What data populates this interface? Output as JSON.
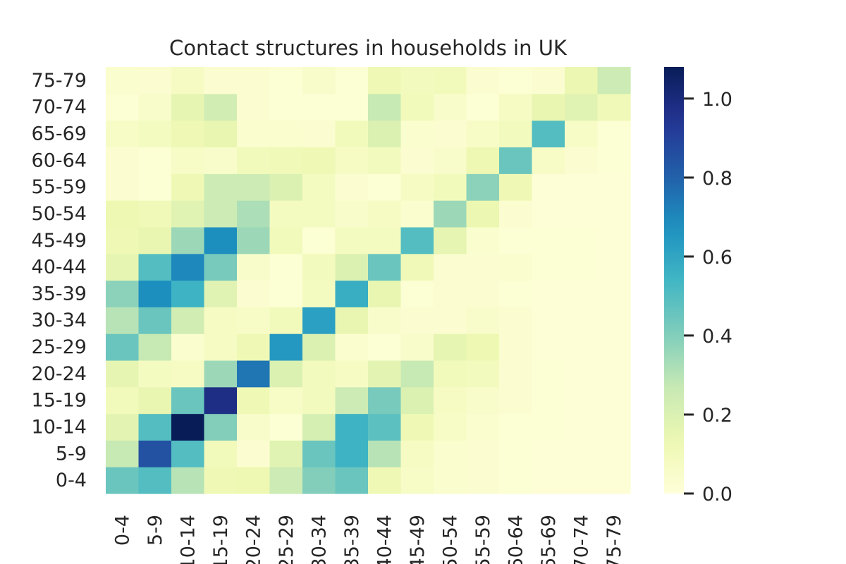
{
  "chart_data": {
    "type": "heatmap",
    "title": "Contact structures in households in UK",
    "xlabel": "",
    "ylabel": "",
    "x_labels": [
      "0-4",
      "5-9",
      "10-14",
      "15-19",
      "20-24",
      "25-29",
      "30-34",
      "35-39",
      "40-44",
      "45-49",
      "50-54",
      "55-59",
      "60-64",
      "65-69",
      "70-74",
      "75-79"
    ],
    "y_labels": [
      "0-4",
      "5-9",
      "10-14",
      "15-19",
      "20-24",
      "25-29",
      "30-34",
      "35-39",
      "40-44",
      "45-49",
      "50-54",
      "55-59",
      "60-64",
      "65-69",
      "70-74",
      "75-79"
    ],
    "y_order": "bottom-to-top",
    "values": [
      [
        0.45,
        0.5,
        0.3,
        0.12,
        0.13,
        0.25,
        0.4,
        0.45,
        0.12,
        0.06,
        0.04,
        0.03,
        0.02,
        0.01,
        0.01,
        0.01
      ],
      [
        0.27,
        0.85,
        0.5,
        0.1,
        0.03,
        0.18,
        0.45,
        0.55,
        0.3,
        0.07,
        0.04,
        0.03,
        0.02,
        0.01,
        0.01,
        0.01
      ],
      [
        0.17,
        0.5,
        1.08,
        0.4,
        0.05,
        0.02,
        0.22,
        0.55,
        0.48,
        0.12,
        0.06,
        0.04,
        0.02,
        0.02,
        0.01,
        0.01
      ],
      [
        0.1,
        0.15,
        0.45,
        0.98,
        0.12,
        0.06,
        0.09,
        0.25,
        0.42,
        0.2,
        0.07,
        0.05,
        0.03,
        0.02,
        0.01,
        0.01
      ],
      [
        0.16,
        0.08,
        0.07,
        0.35,
        0.75,
        0.2,
        0.09,
        0.07,
        0.17,
        0.27,
        0.1,
        0.09,
        0.03,
        0.02,
        0.01,
        0.01
      ],
      [
        0.45,
        0.27,
        0.04,
        0.07,
        0.12,
        0.65,
        0.2,
        0.04,
        0.02,
        0.05,
        0.16,
        0.13,
        0.03,
        0.01,
        0.01,
        0.01
      ],
      [
        0.3,
        0.45,
        0.23,
        0.07,
        0.06,
        0.1,
        0.62,
        0.15,
        0.05,
        0.03,
        0.03,
        0.05,
        0.03,
        0.01,
        0.01,
        0.01
      ],
      [
        0.38,
        0.68,
        0.55,
        0.18,
        0.03,
        0.02,
        0.08,
        0.57,
        0.15,
        0.02,
        0.03,
        0.03,
        0.02,
        0.01,
        0.01,
        0.01
      ],
      [
        0.16,
        0.5,
        0.7,
        0.42,
        0.05,
        0.02,
        0.09,
        0.2,
        0.45,
        0.11,
        0.03,
        0.03,
        0.04,
        0.02,
        0.02,
        0.01
      ],
      [
        0.12,
        0.15,
        0.35,
        0.68,
        0.35,
        0.1,
        0.02,
        0.08,
        0.08,
        0.5,
        0.16,
        0.04,
        0.02,
        0.02,
        0.02,
        0.01
      ],
      [
        0.13,
        0.11,
        0.18,
        0.25,
        0.32,
        0.08,
        0.08,
        0.05,
        0.07,
        0.04,
        0.35,
        0.14,
        0.03,
        0.01,
        0.01,
        0.01
      ],
      [
        0.03,
        0.02,
        0.12,
        0.25,
        0.25,
        0.2,
        0.08,
        0.03,
        0.02,
        0.07,
        0.1,
        0.38,
        0.12,
        0.01,
        0.01,
        0.01
      ],
      [
        0.03,
        0.02,
        0.06,
        0.05,
        0.1,
        0.11,
        0.12,
        0.07,
        0.09,
        0.03,
        0.05,
        0.13,
        0.45,
        0.06,
        0.03,
        0.02
      ],
      [
        0.06,
        0.08,
        0.12,
        0.15,
        0.04,
        0.04,
        0.03,
        0.1,
        0.2,
        0.04,
        0.03,
        0.06,
        0.09,
        0.5,
        0.06,
        0.02
      ],
      [
        0.02,
        0.05,
        0.16,
        0.23,
        0.03,
        0.02,
        0.02,
        0.02,
        0.27,
        0.1,
        0.05,
        0.02,
        0.07,
        0.15,
        0.18,
        0.11
      ],
      [
        0.04,
        0.03,
        0.07,
        0.03,
        0.03,
        0.02,
        0.05,
        0.02,
        0.12,
        0.09,
        0.1,
        0.03,
        0.02,
        0.03,
        0.14,
        0.25
      ]
    ],
    "colormap": "YlGnBu",
    "colorbar": {
      "min": 0.0,
      "max": 1.08,
      "ticks": [
        "0.0",
        "0.2",
        "0.4",
        "0.6",
        "0.8",
        "1.0"
      ]
    },
    "grid": false,
    "legend": "colorbar-right"
  }
}
